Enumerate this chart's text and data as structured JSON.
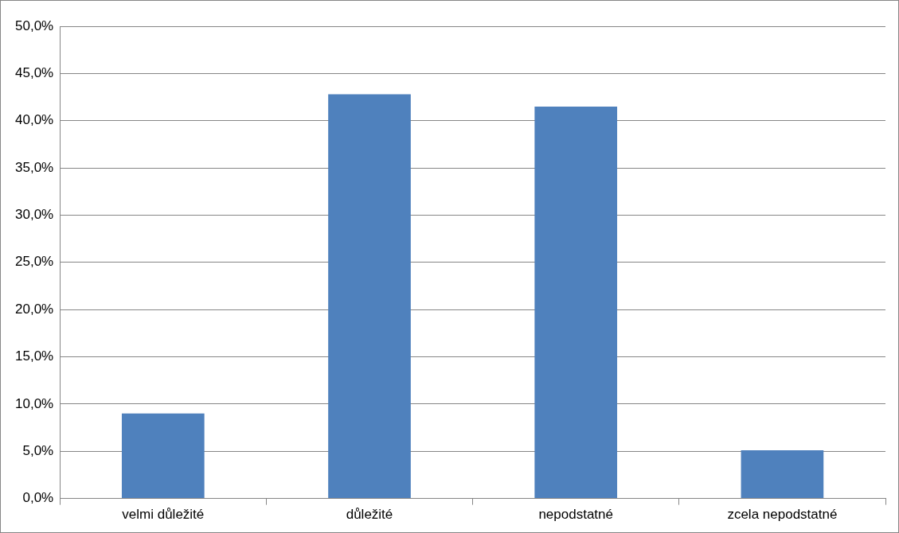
{
  "chart_data": {
    "type": "bar",
    "categories": [
      "velmi důležité",
      "důležité",
      "nepodstatné",
      "zcela nepodstatné"
    ],
    "values": [
      9.0,
      42.8,
      41.5,
      5.1
    ],
    "color": "#4f81bd",
    "ylim": [
      0,
      50
    ],
    "yticks": [
      {
        "value": 0,
        "label": "0,0%"
      },
      {
        "value": 5,
        "label": "5,0%"
      },
      {
        "value": 10,
        "label": "10,0%"
      },
      {
        "value": 15,
        "label": "15,0%"
      },
      {
        "value": 20,
        "label": "20,0%"
      },
      {
        "value": 25,
        "label": "25,0%"
      },
      {
        "value": 30,
        "label": "30,0%"
      },
      {
        "value": 35,
        "label": "35,0%"
      },
      {
        "value": 40,
        "label": "40,0%"
      },
      {
        "value": 45,
        "label": "45,0%"
      },
      {
        "value": 50,
        "label": "50,0%"
      }
    ],
    "grid": "y",
    "legend": false
  }
}
